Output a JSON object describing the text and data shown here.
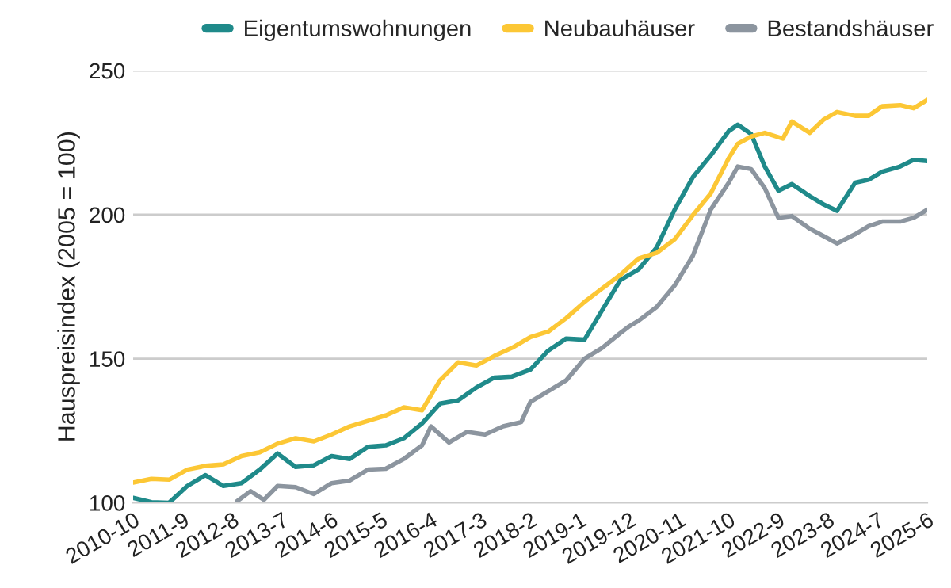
{
  "chart_data": {
    "type": "line",
    "ylabel": "Hauspreisindex (2005 = 100)",
    "ylim": [
      100,
      250
    ],
    "yticks": [
      100,
      150,
      200,
      250
    ],
    "xlim": [
      "2010-10",
      "2025-06"
    ],
    "xticks": [
      {
        "value": "2010-10",
        "label": "2010-10"
      },
      {
        "value": "2011-09",
        "label": "2011-9"
      },
      {
        "value": "2012-08",
        "label": "2012-8"
      },
      {
        "value": "2013-07",
        "label": "2013-7"
      },
      {
        "value": "2014-06",
        "label": "2014-6"
      },
      {
        "value": "2015-05",
        "label": "2015-5"
      },
      {
        "value": "2016-04",
        "label": "2016-4"
      },
      {
        "value": "2017-03",
        "label": "2017-3"
      },
      {
        "value": "2018-02",
        "label": "2018-2"
      },
      {
        "value": "2019-01",
        "label": "2019-1"
      },
      {
        "value": "2019-12",
        "label": "2019-12"
      },
      {
        "value": "2020-11",
        "label": "2020-11"
      },
      {
        "value": "2021-10",
        "label": "2021-10"
      },
      {
        "value": "2022-09",
        "label": "2022-9"
      },
      {
        "value": "2023-08",
        "label": "2023-8"
      },
      {
        "value": "2024-07",
        "label": "2024-7"
      },
      {
        "value": "2025-06",
        "label": "2025-6"
      }
    ],
    "grid": "y",
    "legend": "top",
    "line_style": "solid",
    "series": [
      {
        "name": "Eigentumswohnungen",
        "color": "#1f8a8a",
        "x": [
          "2010-10",
          "2011-02",
          "2011-06",
          "2011-10",
          "2012-02",
          "2012-06",
          "2012-10",
          "2013-02",
          "2013-06",
          "2013-10",
          "2014-02",
          "2014-06",
          "2014-10",
          "2015-02",
          "2015-06",
          "2015-10",
          "2016-02",
          "2016-06",
          "2016-10",
          "2017-02",
          "2017-06",
          "2017-10",
          "2018-02",
          "2018-06",
          "2018-10",
          "2019-02",
          "2019-06",
          "2019-10",
          "2020-02",
          "2020-06",
          "2020-10",
          "2021-02",
          "2021-06",
          "2021-10",
          "2021-12",
          "2022-03",
          "2022-06",
          "2022-09",
          "2022-12",
          "2023-04",
          "2023-07",
          "2023-10",
          "2024-02",
          "2024-05",
          "2024-08",
          "2024-12",
          "2025-03",
          "2025-06"
        ],
        "values": [
          101.7,
          100.2,
          100,
          105.8,
          109.6,
          105.8,
          106.8,
          111.5,
          117.1,
          112.4,
          113,
          116.2,
          115.2,
          119.4,
          119.9,
          122.4,
          127.5,
          134.4,
          135.5,
          140,
          143.4,
          143.8,
          146.2,
          152.8,
          157,
          156.6,
          166.9,
          177.3,
          181,
          188.5,
          201.7,
          213,
          220.5,
          229,
          231.2,
          228,
          216.7,
          208.3,
          210.6,
          206.4,
          203.6,
          201.3,
          211.1,
          212.1,
          214.9,
          216.7,
          219,
          218.6
        ]
      },
      {
        "name": "Neubauhäuser",
        "color": "#fcc735",
        "x": [
          "2010-10",
          "2011-02",
          "2011-06",
          "2011-10",
          "2012-02",
          "2012-06",
          "2012-10",
          "2013-02",
          "2013-06",
          "2013-10",
          "2014-02",
          "2014-06",
          "2014-10",
          "2015-02",
          "2015-06",
          "2015-10",
          "2016-02",
          "2016-06",
          "2016-10",
          "2017-02",
          "2017-06",
          "2017-10",
          "2018-02",
          "2018-06",
          "2018-10",
          "2019-02",
          "2019-06",
          "2019-10",
          "2020-02",
          "2020-06",
          "2020-10",
          "2021-02",
          "2021-06",
          "2021-10",
          "2021-12",
          "2022-03",
          "2022-06",
          "2022-10",
          "2022-12",
          "2023-04",
          "2023-07",
          "2023-10",
          "2024-02",
          "2024-05",
          "2024-08",
          "2024-12",
          "2025-03",
          "2025-06"
        ],
        "values": [
          107,
          108.3,
          108,
          111.5,
          112.8,
          113.3,
          116.2,
          117.5,
          120.5,
          122.4,
          121.3,
          123.7,
          126.5,
          128.4,
          130.3,
          133.1,
          132.1,
          142.5,
          148.7,
          147.6,
          150.9,
          153.8,
          157.5,
          159.4,
          164.1,
          169.7,
          174.4,
          179.1,
          184.8,
          186.7,
          191.4,
          199.8,
          207.3,
          219.6,
          224.6,
          227.1,
          228.4,
          226.4,
          232.3,
          228.4,
          232.9,
          235.6,
          234.3,
          234.3,
          237.6,
          238,
          236.9,
          239.8
        ]
      },
      {
        "name": "Bestandshäuser",
        "color": "#8c959f",
        "x": [
          "2012-09",
          "2012-12",
          "2013-03",
          "2013-06",
          "2013-10",
          "2014-02",
          "2014-06",
          "2014-10",
          "2015-02",
          "2015-06",
          "2015-10",
          "2016-02",
          "2016-04",
          "2016-08",
          "2016-12",
          "2017-04",
          "2017-08",
          "2017-12",
          "2018-02",
          "2018-06",
          "2018-10",
          "2019-02",
          "2019-06",
          "2019-10",
          "2019-12",
          "2020-02",
          "2020-06",
          "2020-10",
          "2021-02",
          "2021-06",
          "2021-10",
          "2021-12",
          "2022-03",
          "2022-06",
          "2022-09",
          "2022-12",
          "2023-04",
          "2023-07",
          "2023-10",
          "2024-02",
          "2024-05",
          "2024-08",
          "2024-12",
          "2025-03",
          "2025-06"
        ],
        "values": [
          100.5,
          104,
          101,
          105.8,
          105.4,
          103,
          106.8,
          107.7,
          111.5,
          111.8,
          115.2,
          119.9,
          126.5,
          120.9,
          124.6,
          123.7,
          126.5,
          128,
          135,
          138.7,
          142.5,
          150,
          153.8,
          158.9,
          161.3,
          163.2,
          167.9,
          175.4,
          185.7,
          201.7,
          211.1,
          216.7,
          215.8,
          209.2,
          198.9,
          199.5,
          195.1,
          192.6,
          190,
          193.2,
          196,
          197.6,
          197.6,
          198.9,
          201.7
        ]
      }
    ]
  }
}
